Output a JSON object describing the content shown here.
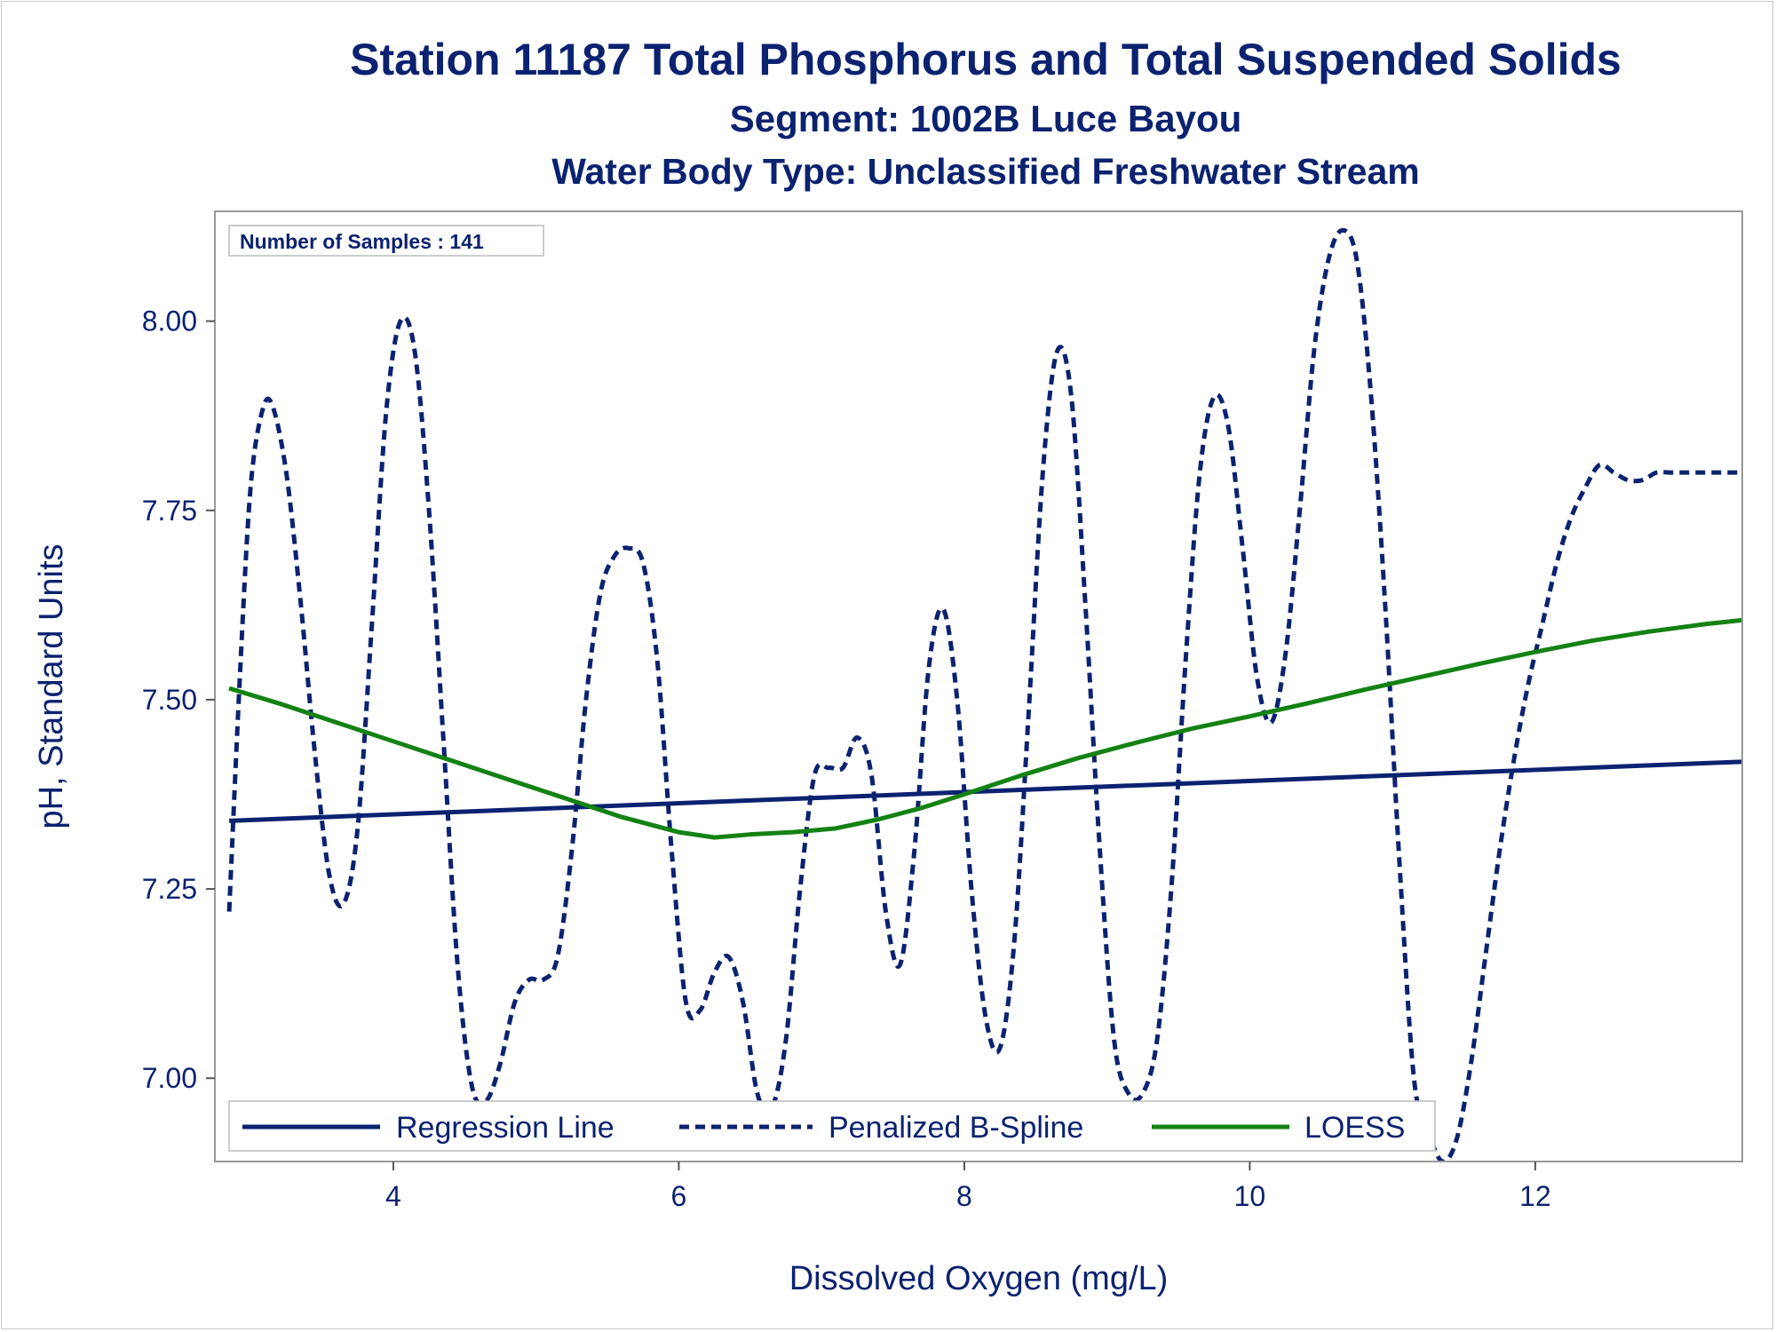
{
  "chart_data": {
    "type": "line",
    "title": "Station 11187  Total Phosphorus and Total Suspended Solids",
    "subtitle": "Segment: 1002B  Luce Bayou",
    "subtitle2": "Water Body Type: Unclassified Freshwater Stream",
    "xlabel": "Dissolved Oxygen (mg/L)",
    "ylabel": "pH, Standard Units",
    "xlim": [
      2.75,
      13.45
    ],
    "ylim": [
      6.89,
      8.145
    ],
    "x_ticks": [
      4,
      6,
      8,
      10,
      12
    ],
    "x_tick_labels": [
      "4",
      "6",
      "8",
      "10",
      "12"
    ],
    "y_ticks": [
      7.0,
      7.25,
      7.5,
      7.75,
      8.0
    ],
    "y_tick_labels": [
      "7.00",
      "7.25",
      "7.50",
      "7.75",
      "8.00"
    ],
    "inset_text": "Number of Samples : 141",
    "legend_position": "bottom-left inside",
    "series": [
      {
        "name": "Regression Line",
        "style": "solid",
        "color": "#0b2270",
        "x": [
          2.85,
          13.45
        ],
        "y": [
          7.34,
          7.418
        ]
      },
      {
        "name": "Penalized B-Spline",
        "style": "dashed",
        "color": "#0b2270",
        "x": [
          2.85,
          2.93,
          3.0,
          3.08,
          3.15,
          3.25,
          3.35,
          3.45,
          3.55,
          3.65,
          3.75,
          3.85,
          3.95,
          4.05,
          4.15,
          4.25,
          4.35,
          4.45,
          4.55,
          4.65,
          4.75,
          4.85,
          4.95,
          5.05,
          5.15,
          5.25,
          5.35,
          5.45,
          5.55,
          5.65,
          5.75,
          5.85,
          5.95,
          6.05,
          6.15,
          6.25,
          6.35,
          6.45,
          6.55,
          6.65,
          6.75,
          6.85,
          6.95,
          7.05,
          7.15,
          7.25,
          7.35,
          7.45,
          7.55,
          7.65,
          7.75,
          7.85,
          7.95,
          8.05,
          8.15,
          8.25,
          8.35,
          8.45,
          8.55,
          8.65,
          8.75,
          8.85,
          8.95,
          9.05,
          9.15,
          9.25,
          9.35,
          9.45,
          9.55,
          9.65,
          9.75,
          9.85,
          9.95,
          10.05,
          10.15,
          10.25,
          10.35,
          10.45,
          10.55,
          10.65,
          10.75,
          10.85,
          10.95,
          11.05,
          11.15,
          11.25,
          11.35,
          11.45,
          11.55,
          11.65,
          11.75,
          11.85,
          11.95,
          12.05,
          12.15,
          12.25,
          12.35,
          12.45,
          12.55,
          12.65,
          12.75,
          12.85,
          12.95,
          13.05,
          13.15,
          13.25,
          13.35,
          13.45
        ],
        "y": [
          7.22,
          7.55,
          7.78,
          7.88,
          7.89,
          7.8,
          7.63,
          7.43,
          7.27,
          7.23,
          7.33,
          7.6,
          7.88,
          8.0,
          7.96,
          7.75,
          7.45,
          7.15,
          6.99,
          6.97,
          7.02,
          7.1,
          7.13,
          7.13,
          7.16,
          7.3,
          7.5,
          7.64,
          7.69,
          7.7,
          7.68,
          7.55,
          7.3,
          7.1,
          7.09,
          7.14,
          7.16,
          7.1,
          6.98,
          6.96,
          7.05,
          7.25,
          7.4,
          7.41,
          7.41,
          7.45,
          7.4,
          7.22,
          7.15,
          7.3,
          7.54,
          7.62,
          7.5,
          7.25,
          7.08,
          7.04,
          7.18,
          7.48,
          7.8,
          7.96,
          7.9,
          7.62,
          7.3,
          7.05,
          6.98,
          6.98,
          7.05,
          7.25,
          7.55,
          7.8,
          7.9,
          7.86,
          7.7,
          7.53,
          7.47,
          7.56,
          7.75,
          7.96,
          8.08,
          8.12,
          8.08,
          7.9,
          7.62,
          7.28,
          7.0,
          6.93,
          6.89,
          6.92,
          7.02,
          7.16,
          7.3,
          7.42,
          7.52,
          7.6,
          7.68,
          7.74,
          7.78,
          7.81,
          7.8,
          7.79,
          7.79,
          7.8,
          7.8,
          7.8,
          7.8,
          7.8,
          7.8,
          7.8
        ]
      },
      {
        "name": "LOESS",
        "style": "solid",
        "color": "#138213",
        "x": [
          2.85,
          3.2,
          3.6,
          4.0,
          4.4,
          4.8,
          5.2,
          5.6,
          6.0,
          6.25,
          6.5,
          6.8,
          7.1,
          7.4,
          7.7,
          8.0,
          8.4,
          8.8,
          9.2,
          9.6,
          10.0,
          10.4,
          10.8,
          11.2,
          11.6,
          12.0,
          12.4,
          12.8,
          13.2,
          13.45
        ],
        "y": [
          7.515,
          7.495,
          7.47,
          7.445,
          7.42,
          7.395,
          7.37,
          7.345,
          7.325,
          7.318,
          7.322,
          7.325,
          7.33,
          7.342,
          7.357,
          7.375,
          7.4,
          7.423,
          7.443,
          7.462,
          7.478,
          7.495,
          7.513,
          7.53,
          7.547,
          7.563,
          7.578,
          7.59,
          7.6,
          7.605
        ]
      }
    ]
  }
}
